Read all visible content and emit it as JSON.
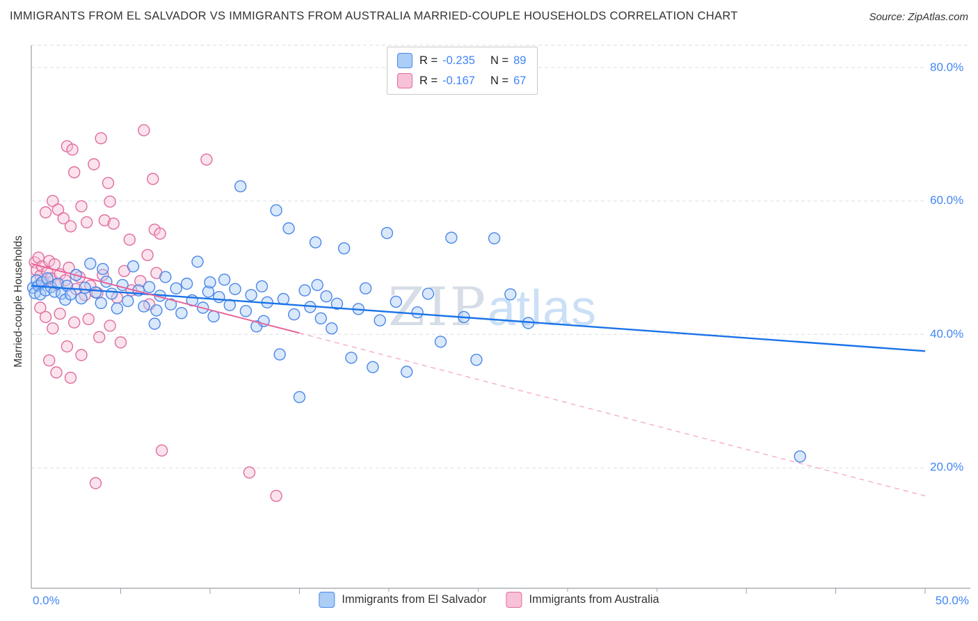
{
  "header": {
    "title": "IMMIGRANTS FROM EL SALVADOR VS IMMIGRANTS FROM AUSTRALIA MARRIED-COUPLE HOUSEHOLDS CORRELATION CHART",
    "source": "Source: ZipAtlas.com"
  },
  "watermark": {
    "part1": "ZIP",
    "part2": "atlas"
  },
  "axes": {
    "y_label": "Married-couple Households",
    "x_min_label": "0.0%",
    "x_max_label": "50.0%",
    "y_tick_labels": [
      "80.0%",
      "60.0%",
      "40.0%",
      "20.0%"
    ]
  },
  "legend_box": {
    "rows": [
      {
        "r_label": "R =",
        "r_value": "-0.235",
        "n_label": "N =",
        "n_value": "89"
      },
      {
        "r_label": "R =",
        "r_value": "-0.167",
        "n_label": "N =",
        "n_value": "67"
      }
    ],
    "value_color": "#4285f4"
  },
  "bottom_legend": {
    "items": [
      {
        "label": "Immigrants from El Salvador"
      },
      {
        "label": "Immigrants from Australia"
      }
    ]
  },
  "chart_data": {
    "type": "scatter",
    "title": "Immigrants from El Salvador vs Immigrants from Australia Married-couple Households",
    "xlabel": "",
    "ylabel": "Married-couple Households",
    "xlim": [
      0,
      50
    ],
    "ylim": [
      0,
      85
    ],
    "x_tick_step": 5,
    "y_gridlines": [
      20,
      40,
      60,
      80
    ],
    "grid": "horizontal-dashed",
    "legend_position": "top-center and bottom-center",
    "series": [
      {
        "name": "Immigrants from El Salvador",
        "key": "el-salvador",
        "R": -0.235,
        "N": 89,
        "color": "#4a86e8",
        "fill": "#abcdf6",
        "points": [
          [
            0.1,
            47.0
          ],
          [
            0.2,
            46.2
          ],
          [
            0.3,
            48.1
          ],
          [
            0.4,
            47.3
          ],
          [
            0.5,
            46.0
          ],
          [
            0.6,
            47.8
          ],
          [
            0.8,
            46.6
          ],
          [
            0.9,
            48.4
          ],
          [
            1.1,
            47.1
          ],
          [
            1.3,
            46.4
          ],
          [
            1.5,
            47.6
          ],
          [
            1.7,
            46.1
          ],
          [
            1.9,
            45.2
          ],
          [
            2.0,
            47.3
          ],
          [
            2.2,
            46.0
          ],
          [
            2.5,
            48.9
          ],
          [
            2.8,
            45.4
          ],
          [
            3.0,
            47.0
          ],
          [
            3.3,
            50.6
          ],
          [
            3.6,
            46.3
          ],
          [
            3.9,
            44.7
          ],
          [
            4.0,
            49.8
          ],
          [
            4.2,
            47.9
          ],
          [
            4.5,
            46.1
          ],
          [
            4.8,
            43.9
          ],
          [
            5.1,
            47.4
          ],
          [
            5.4,
            45.0
          ],
          [
            5.7,
            50.2
          ],
          [
            6.0,
            46.6
          ],
          [
            6.3,
            44.2
          ],
          [
            6.6,
            47.1
          ],
          [
            6.9,
            41.6
          ],
          [
            7.0,
            43.6
          ],
          [
            7.2,
            45.8
          ],
          [
            7.5,
            48.6
          ],
          [
            7.8,
            44.5
          ],
          [
            8.1,
            46.9
          ],
          [
            8.4,
            43.2
          ],
          [
            8.7,
            47.6
          ],
          [
            9.0,
            45.1
          ],
          [
            9.3,
            50.9
          ],
          [
            9.6,
            44.0
          ],
          [
            9.9,
            46.4
          ],
          [
            10.0,
            47.8
          ],
          [
            10.2,
            42.7
          ],
          [
            10.5,
            45.6
          ],
          [
            10.8,
            48.2
          ],
          [
            11.1,
            44.4
          ],
          [
            11.4,
            46.8
          ],
          [
            11.7,
            62.2
          ],
          [
            12.0,
            43.5
          ],
          [
            12.3,
            45.9
          ],
          [
            12.6,
            41.2
          ],
          [
            12.9,
            47.2
          ],
          [
            13.0,
            42.0
          ],
          [
            13.2,
            44.8
          ],
          [
            13.7,
            58.6
          ],
          [
            13.9,
            37.0
          ],
          [
            14.1,
            45.3
          ],
          [
            14.4,
            55.9
          ],
          [
            14.7,
            43.0
          ],
          [
            15.0,
            30.6
          ],
          [
            15.3,
            46.6
          ],
          [
            15.6,
            44.1
          ],
          [
            15.9,
            53.8
          ],
          [
            16.0,
            47.4
          ],
          [
            16.2,
            42.4
          ],
          [
            16.5,
            45.7
          ],
          [
            16.8,
            40.9
          ],
          [
            17.1,
            44.6
          ],
          [
            17.5,
            52.9
          ],
          [
            17.9,
            36.5
          ],
          [
            18.3,
            43.8
          ],
          [
            18.7,
            46.9
          ],
          [
            19.1,
            35.1
          ],
          [
            19.5,
            42.1
          ],
          [
            19.9,
            55.2
          ],
          [
            20.4,
            44.9
          ],
          [
            21.0,
            34.4
          ],
          [
            21.6,
            43.3
          ],
          [
            22.2,
            46.1
          ],
          [
            22.9,
            38.9
          ],
          [
            23.5,
            54.5
          ],
          [
            24.2,
            42.6
          ],
          [
            24.9,
            36.2
          ],
          [
            25.9,
            54.4
          ],
          [
            26.8,
            46.0
          ],
          [
            27.8,
            41.7
          ],
          [
            43.0,
            21.7
          ]
        ]
      },
      {
        "name": "Immigrants from Australia",
        "key": "australia",
        "R": -0.167,
        "N": 67,
        "color": "#e06c9f",
        "fill": "#f7c1d7",
        "points": [
          [
            0.2,
            50.8
          ],
          [
            0.3,
            49.6
          ],
          [
            0.4,
            51.5
          ],
          [
            0.5,
            48.8
          ],
          [
            0.5,
            44.0
          ],
          [
            0.6,
            50.2
          ],
          [
            0.7,
            47.9
          ],
          [
            0.8,
            58.3
          ],
          [
            0.8,
            42.6
          ],
          [
            0.9,
            49.3
          ],
          [
            1.0,
            51.0
          ],
          [
            1.0,
            36.1
          ],
          [
            1.1,
            48.4
          ],
          [
            1.2,
            60.0
          ],
          [
            1.2,
            40.9
          ],
          [
            1.3,
            50.5
          ],
          [
            1.4,
            47.5
          ],
          [
            1.4,
            34.3
          ],
          [
            1.5,
            58.7
          ],
          [
            1.6,
            49.0
          ],
          [
            1.6,
            43.1
          ],
          [
            1.8,
            57.4
          ],
          [
            1.9,
            48.1
          ],
          [
            2.0,
            68.2
          ],
          [
            2.0,
            38.2
          ],
          [
            2.1,
            50.0
          ],
          [
            2.2,
            56.2
          ],
          [
            2.2,
            33.5
          ],
          [
            2.3,
            67.7
          ],
          [
            2.4,
            64.3
          ],
          [
            2.4,
            41.8
          ],
          [
            2.5,
            46.8
          ],
          [
            2.7,
            48.6
          ],
          [
            2.8,
            59.2
          ],
          [
            2.8,
            36.9
          ],
          [
            3.0,
            45.9
          ],
          [
            3.1,
            56.8
          ],
          [
            3.2,
            42.3
          ],
          [
            3.3,
            47.3
          ],
          [
            3.5,
            65.5
          ],
          [
            3.6,
            17.7
          ],
          [
            3.7,
            46.2
          ],
          [
            3.8,
            39.6
          ],
          [
            3.9,
            69.4
          ],
          [
            4.0,
            48.9
          ],
          [
            4.1,
            57.1
          ],
          [
            4.3,
            62.7
          ],
          [
            4.4,
            59.9
          ],
          [
            4.4,
            41.3
          ],
          [
            4.6,
            56.6
          ],
          [
            4.8,
            45.5
          ],
          [
            5.0,
            38.8
          ],
          [
            5.2,
            49.5
          ],
          [
            5.5,
            54.2
          ],
          [
            5.6,
            46.6
          ],
          [
            6.1,
            48.0
          ],
          [
            6.3,
            70.6
          ],
          [
            6.5,
            51.9
          ],
          [
            6.6,
            44.5
          ],
          [
            6.8,
            63.3
          ],
          [
            6.9,
            55.7
          ],
          [
            7.0,
            49.2
          ],
          [
            7.2,
            55.1
          ],
          [
            7.3,
            22.6
          ],
          [
            9.8,
            66.2
          ],
          [
            12.2,
            19.3
          ],
          [
            13.7,
            15.8
          ]
        ]
      }
    ],
    "trend_lines": [
      {
        "name": "el-salvador-trend",
        "style": "solid",
        "color": "#1a73e8",
        "width": 2.4,
        "x1": 0,
        "y1": 47.3,
        "x2": 50,
        "y2": 37.5
      },
      {
        "name": "australia-trend-solid",
        "style": "solid",
        "color": "#e8639a",
        "width": 2,
        "x1": 0,
        "y1": 50.6,
        "x2": 15,
        "y2": 40.2
      },
      {
        "name": "australia-trend-dashed",
        "style": "dashed",
        "color": "#f4a7c3",
        "width": 1.3,
        "x1": 15,
        "y1": 40.2,
        "x2": 50,
        "y2": 15.8
      }
    ]
  }
}
